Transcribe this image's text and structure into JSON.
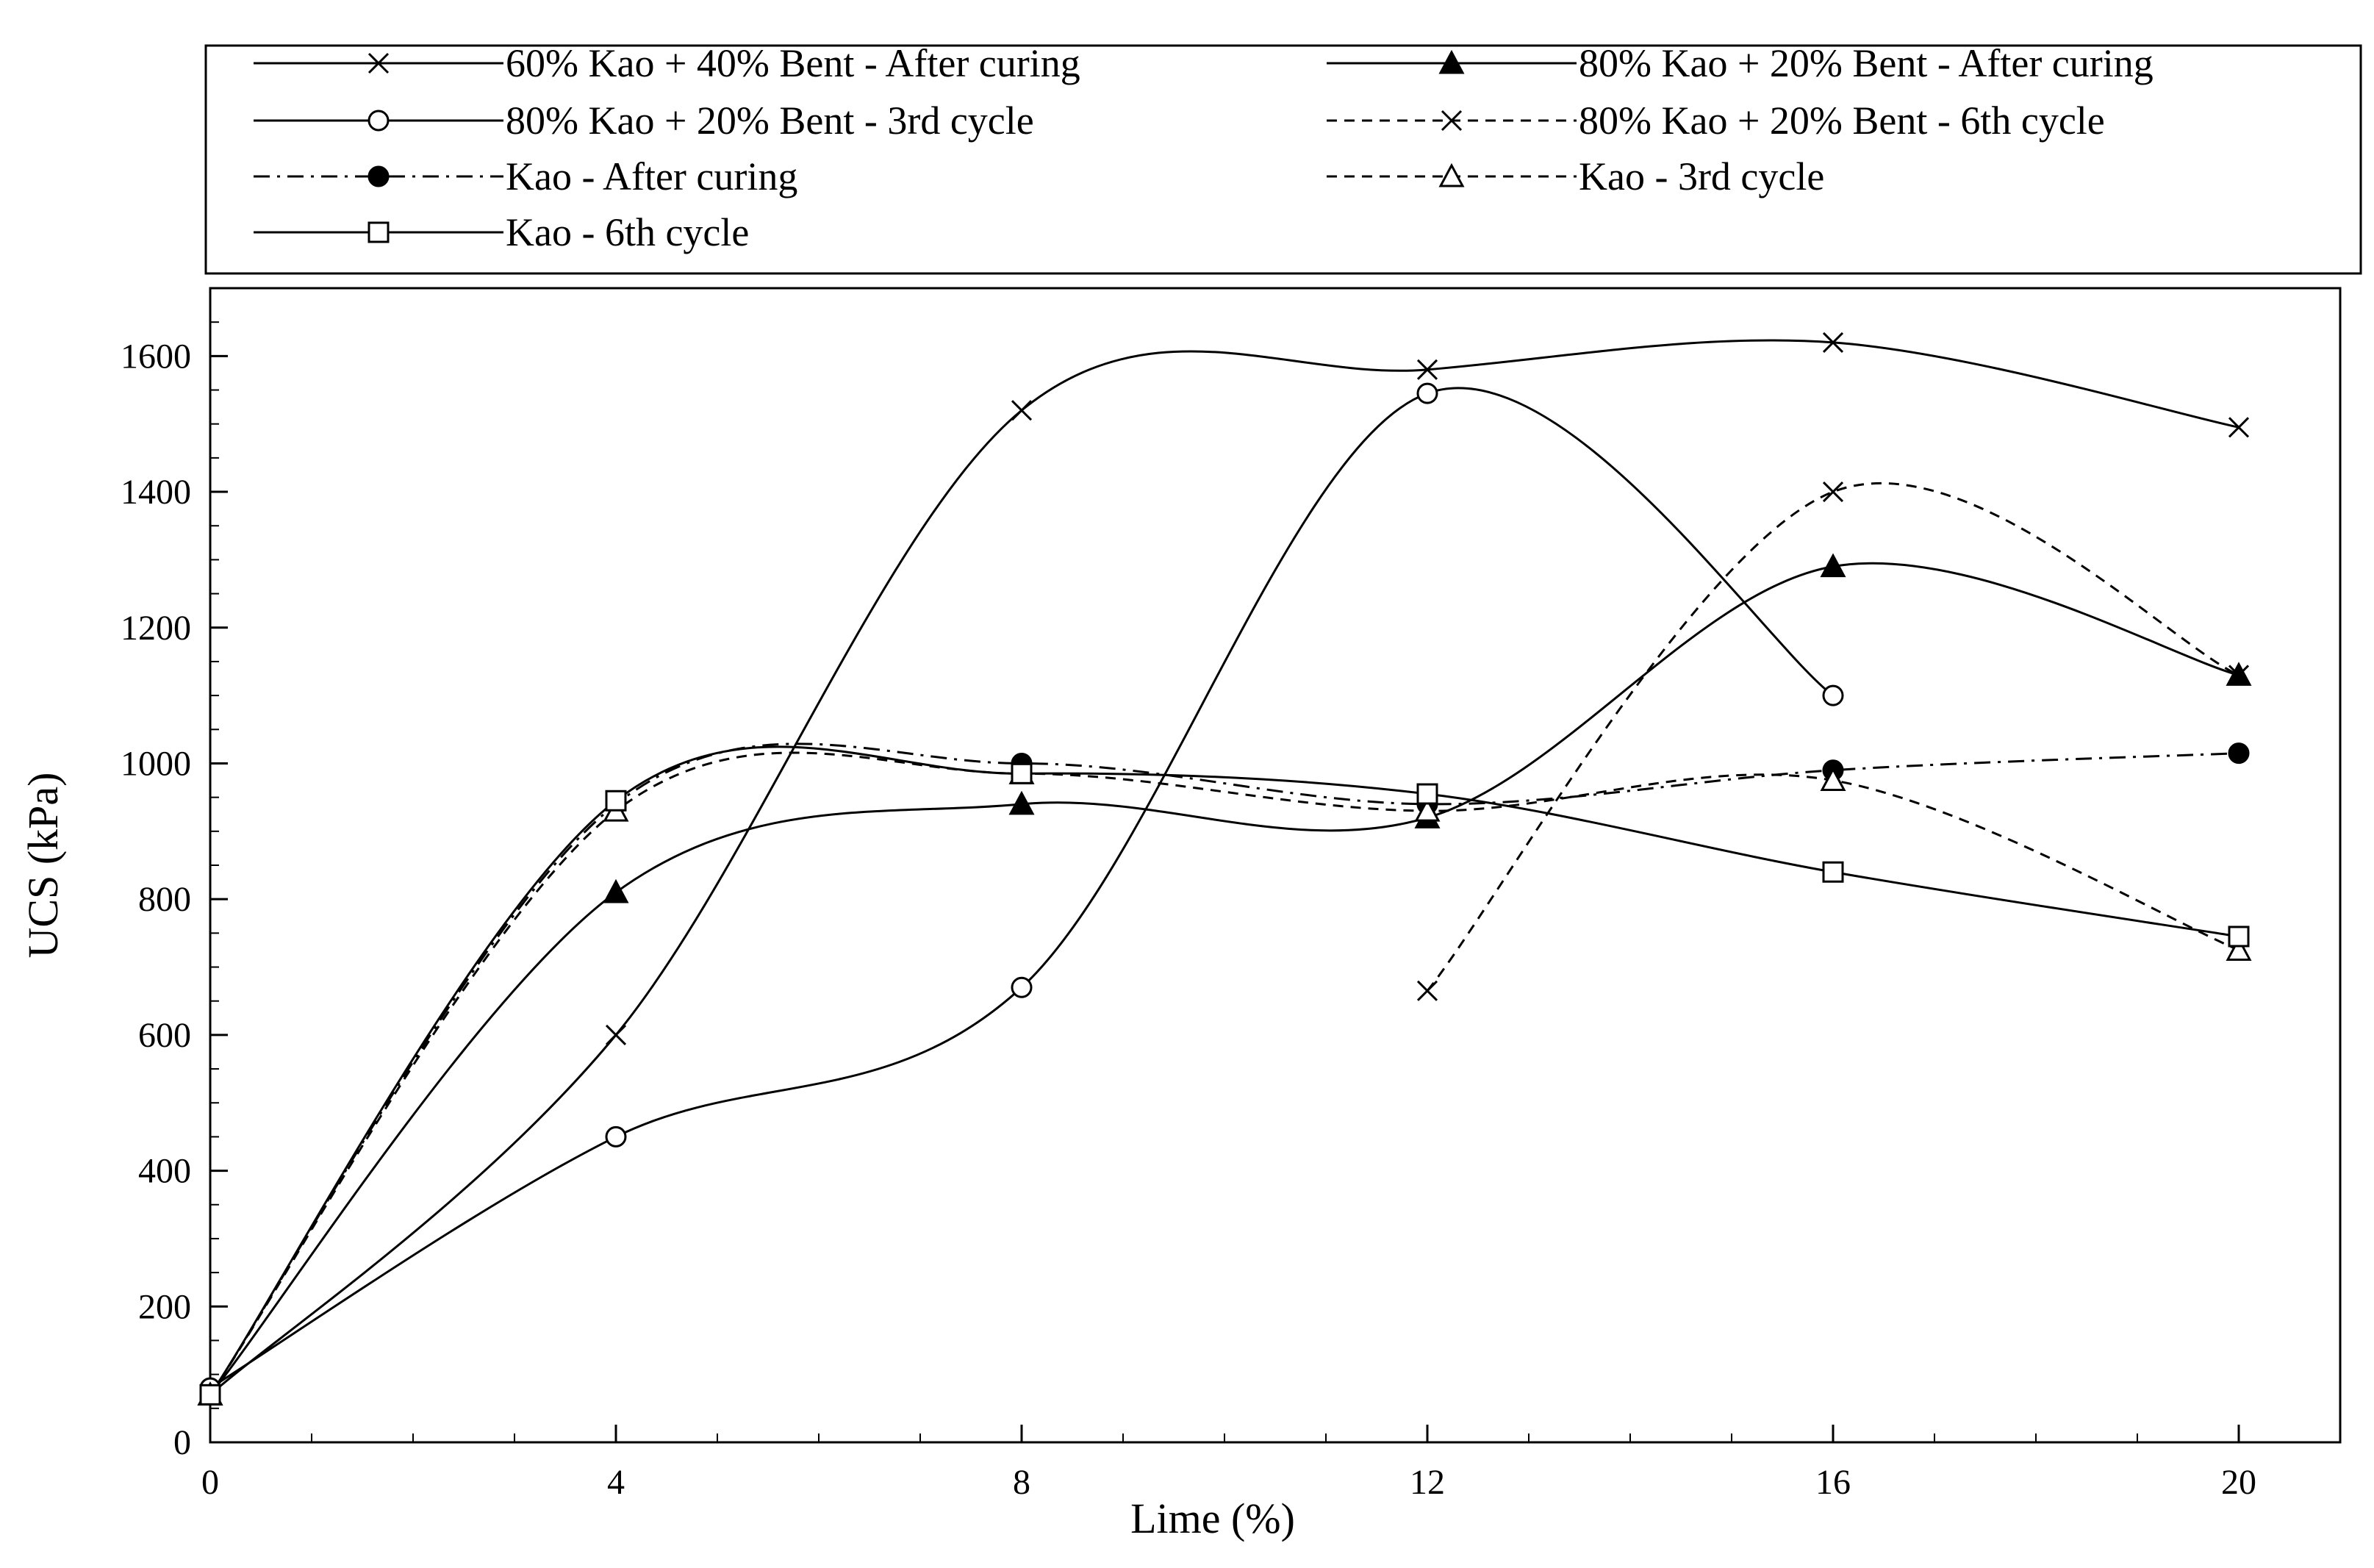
{
  "chart_data": {
    "type": "line",
    "title": "",
    "xlabel": "Lime (%)",
    "ylabel": "UCS (kPa)",
    "xlim": [
      0,
      21
    ],
    "ylim": [
      0,
      1700
    ],
    "xticks": [
      0,
      4,
      8,
      12,
      16,
      20
    ],
    "xtick_labels": [
      "0",
      "4",
      "8",
      "12",
      "16",
      "20"
    ],
    "yticks": [
      0,
      200,
      400,
      600,
      800,
      1000,
      1200,
      1400,
      1600
    ],
    "ytick_labels": [
      "0",
      "200",
      "400",
      "600",
      "800",
      "1000",
      "1200",
      "1400",
      "1600"
    ],
    "legend_position": "top",
    "series": [
      {
        "name": "60% Kao + 40% Bent - After curing",
        "marker": "x",
        "dash": "solid",
        "x": [
          0,
          4,
          8,
          12,
          16,
          20
        ],
        "y": [
          70,
          600,
          1520,
          1580,
          1620,
          1495
        ]
      },
      {
        "name": "80% Kao + 20% Bent - After curing",
        "marker": "triangle-filled",
        "dash": "solid",
        "x": [
          0,
          4,
          8,
          12,
          16,
          20
        ],
        "y": [
          70,
          810,
          940,
          920,
          1290,
          1130
        ]
      },
      {
        "name": "80% Kao + 20% Bent - 3rd cycle",
        "marker": "circle-open",
        "dash": "solid",
        "x": [
          0,
          4,
          8,
          12,
          16
        ],
        "y": [
          80,
          450,
          670,
          1545,
          1100
        ]
      },
      {
        "name": "80% Kao + 20% Bent - 6th cycle",
        "marker": "x",
        "dash": "dashed",
        "x": [
          12,
          16,
          20
        ],
        "y": [
          665,
          1400,
          1130
        ]
      },
      {
        "name": "Kao - After curing",
        "marker": "circle-filled",
        "dash": "dashdot",
        "x": [
          0,
          4,
          8,
          12,
          16,
          20
        ],
        "y": [
          70,
          940,
          1000,
          940,
          990,
          1015
        ]
      },
      {
        "name": "Kao - 3rd cycle",
        "marker": "triangle-open",
        "dash": "dashed",
        "x": [
          0,
          4,
          8,
          12,
          16,
          20
        ],
        "y": [
          70,
          930,
          985,
          930,
          975,
          725
        ]
      },
      {
        "name": "Kao - 6th cycle",
        "marker": "square-open",
        "dash": "solid",
        "x": [
          0,
          4,
          8,
          12,
          16,
          20
        ],
        "y": [
          70,
          945,
          985,
          955,
          840,
          745
        ]
      }
    ]
  }
}
